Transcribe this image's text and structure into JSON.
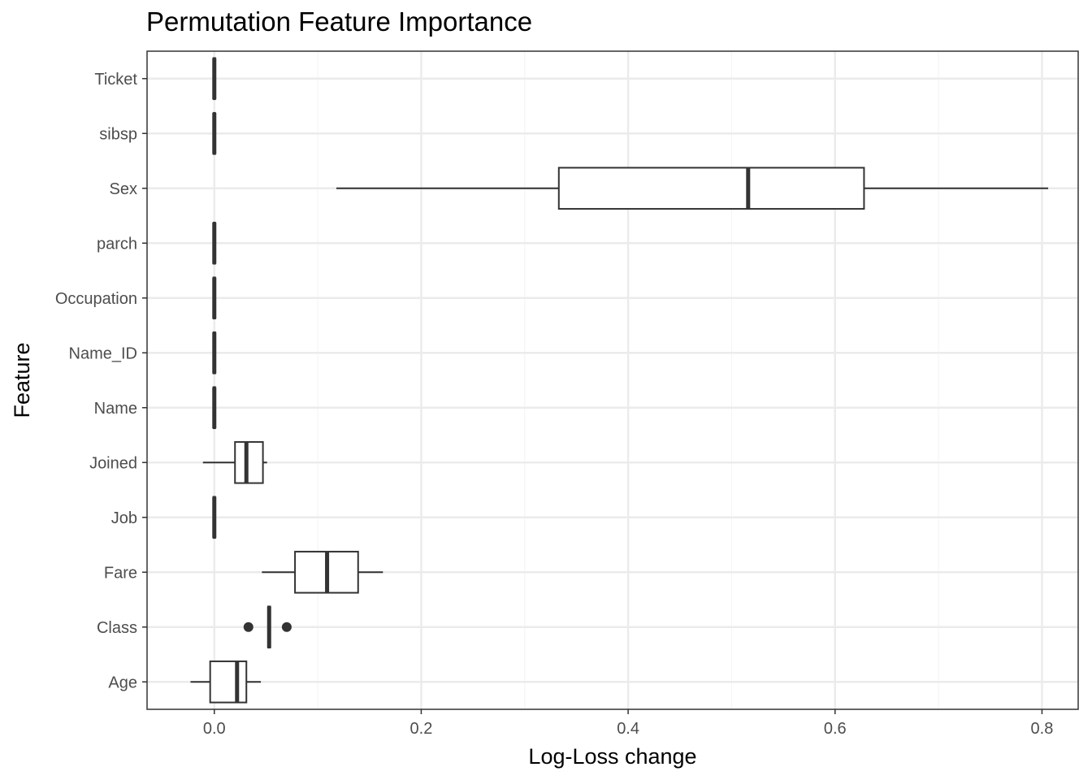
{
  "chart_data": {
    "type": "boxplot",
    "title": "Permutation Feature Importance",
    "xlabel": "Log-Loss change",
    "ylabel": "Feature",
    "xlim": [
      -0.065,
      0.835
    ],
    "x_ticks": [
      0.0,
      0.2,
      0.4,
      0.6,
      0.8
    ],
    "x_tick_labels": [
      "0.0",
      "0.2",
      "0.4",
      "0.6",
      "0.8"
    ],
    "grid": true,
    "legend": "none",
    "categories": [
      "Ticket",
      "sibsp",
      "Sex",
      "parch",
      "Occupation",
      "Name_ID",
      "Name",
      "Joined",
      "Job",
      "Fare",
      "Class",
      "Age"
    ],
    "boxes": [
      {
        "feature": "Ticket",
        "min": 0.0,
        "q1": 0.0,
        "median": 0.0,
        "q3": 0.0,
        "max": 0.0,
        "outliers": []
      },
      {
        "feature": "sibsp",
        "min": 0.0,
        "q1": 0.0,
        "median": 0.0,
        "q3": 0.0,
        "max": 0.0,
        "outliers": []
      },
      {
        "feature": "Sex",
        "min": 0.118,
        "q1": 0.333,
        "median": 0.516,
        "q3": 0.628,
        "max": 0.806,
        "outliers": []
      },
      {
        "feature": "parch",
        "min": 0.0,
        "q1": 0.0,
        "median": 0.0,
        "q3": 0.0,
        "max": 0.0,
        "outliers": []
      },
      {
        "feature": "Occupation",
        "min": 0.0,
        "q1": 0.0,
        "median": 0.0,
        "q3": 0.0,
        "max": 0.0,
        "outliers": []
      },
      {
        "feature": "Name_ID",
        "min": 0.0,
        "q1": 0.0,
        "median": 0.0,
        "q3": 0.0,
        "max": 0.0,
        "outliers": []
      },
      {
        "feature": "Name",
        "min": 0.0,
        "q1": 0.0,
        "median": 0.0,
        "q3": 0.0,
        "max": 0.0,
        "outliers": []
      },
      {
        "feature": "Joined",
        "min": -0.011,
        "q1": 0.02,
        "median": 0.031,
        "q3": 0.047,
        "max": 0.051,
        "outliers": []
      },
      {
        "feature": "Job",
        "min": 0.0,
        "q1": 0.0,
        "median": 0.0,
        "q3": 0.0,
        "max": 0.0,
        "outliers": []
      },
      {
        "feature": "Fare",
        "min": 0.046,
        "q1": 0.078,
        "median": 0.109,
        "q3": 0.139,
        "max": 0.163,
        "outliers": []
      },
      {
        "feature": "Class",
        "min": 0.052,
        "q1": 0.052,
        "median": 0.053,
        "q3": 0.054,
        "max": 0.054,
        "outliers": [
          0.033,
          0.07
        ]
      },
      {
        "feature": "Age",
        "min": -0.023,
        "q1": -0.004,
        "median": 0.022,
        "q3": 0.031,
        "max": 0.045,
        "outliers": []
      }
    ],
    "colors": {
      "box_stroke": "#333333",
      "box_fill": "#ffffff",
      "grid_major": "#ebebeb",
      "grid_minor": "#f5f5f5",
      "panel_border": "#333333"
    }
  }
}
